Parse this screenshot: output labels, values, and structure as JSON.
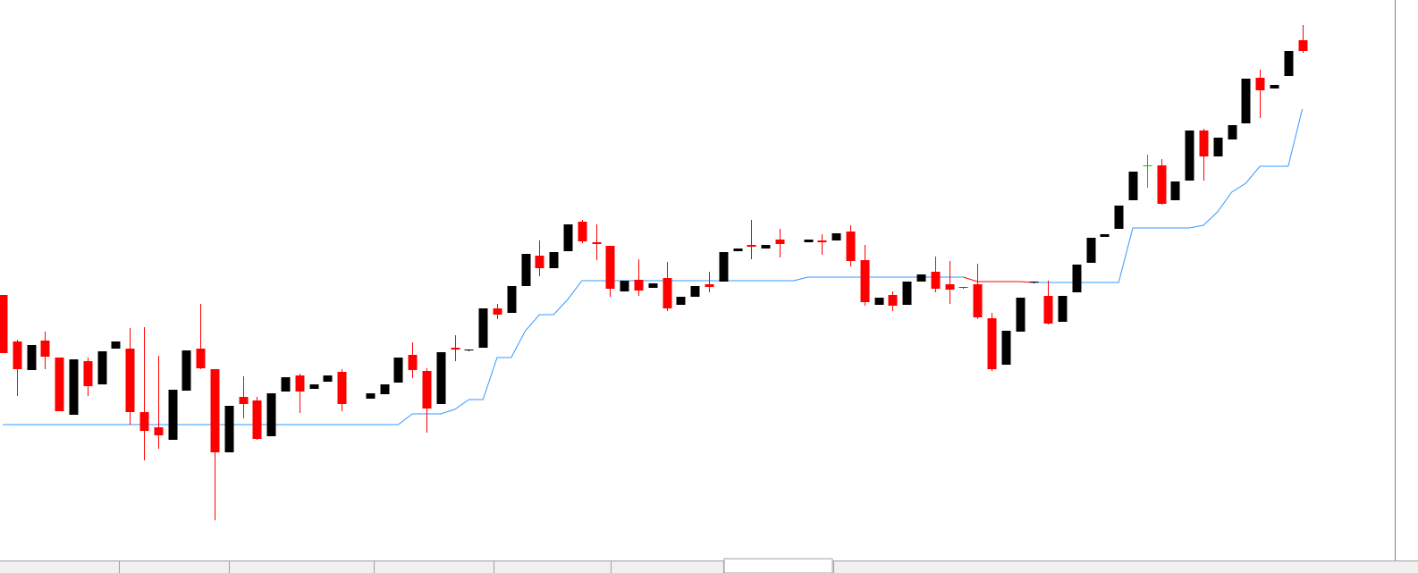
{
  "chart_data": {
    "type": "candlestick",
    "open": [
      311,
      259,
      227,
      260,
      241,
      177,
      237,
      211,
      251,
      251,
      180,
      163,
      149,
      204,
      251,
      228,
      135,
      197,
      193,
      153,
      203,
      221,
      206,
      214,
      225,
      null,
      195,
      200,
      213,
      244,
      226,
      189,
      252,
      249,
      252,
      296,
      291,
      321,
      355,
      341,
      360,
      393,
      370,
      366,
      315,
      328,
      319,
      330,
      300,
      309,
      323,
      326,
      360,
      367,
      363,
      373,
      null,
      370,
      372,
      372,
      382,
      350,
      300,
      311,
      300,
      326,
      337,
      323,
      320,
      323,
      285,
      233,
      270,
      325,
      310,
      281,
      314,
      347,
      376,
      385,
      417,
      456,
      456,
      417,
      439,
      495,
      466,
      485,
      503,
      554,
      542,
      556,
      596
    ],
    "high": [
      311,
      261,
      255,
      270,
      241,
      239,
      241,
      248,
      259,
      274,
      275,
      243,
      205,
      249,
      301,
      228,
      187,
      220,
      197,
      201,
      219,
      223,
      211,
      221,
      228,
      null,
      201,
      211,
      241,
      258,
      229,
      247,
      266,
      250,
      296,
      301,
      321,
      357,
      372,
      359,
      390,
      395,
      390,
      366,
      327,
      351,
      324,
      348,
      309,
      321,
      337,
      359,
      363,
      395,
      367,
      385,
      null,
      373,
      379,
      380,
      389,
      367,
      308,
      315,
      326,
      334,
      354,
      349,
      320,
      346,
      291,
      271,
      308,
      326,
      327,
      310,
      345,
      375,
      379,
      411,
      449,
      468,
      463,
      438,
      495,
      497,
      487,
      501,
      553,
      563,
      546,
      584,
      613
    ],
    "low": [
      246,
      198,
      227,
      228,
      181,
      177,
      198,
      211,
      251,
      166,
      126,
      139,
      149,
      204,
      228,
      59,
      135,
      173,
      149,
      153,
      203,
      179,
      206,
      214,
      181,
      null,
      195,
      200,
      213,
      218,
      157,
      189,
      237,
      248,
      252,
      284,
      291,
      321,
      332,
      341,
      360,
      369,
      350,
      309,
      315,
      310,
      319,
      293,
      300,
      309,
      314,
      326,
      360,
      351,
      363,
      353,
      null,
      370,
      356,
      372,
      343,
      299,
      300,
      293,
      300,
      326,
      314,
      301,
      318,
      284,
      226,
      233,
      270,
      324,
      278,
      281,
      314,
      347,
      376,
      385,
      417,
      431,
      412,
      417,
      439,
      439,
      466,
      485,
      503,
      509,
      542,
      556,
      582
    ],
    "close": [
      246,
      228,
      255,
      242,
      181,
      239,
      209,
      248,
      259,
      180,
      159,
      154,
      205,
      249,
      229,
      135,
      187,
      189,
      150,
      201,
      219,
      203,
      211,
      221,
      189,
      null,
      201,
      211,
      241,
      227,
      184,
      247,
      250,
      250,
      296,
      289,
      321,
      357,
      341,
      359,
      390,
      371,
      368,
      318,
      327,
      316,
      324,
      296,
      309,
      321,
      320,
      359,
      363,
      365,
      367,
      368,
      null,
      373,
      370,
      380,
      349,
      303,
      308,
      299,
      326,
      334,
      318,
      317,
      319,
      286,
      228,
      271,
      308,
      326,
      279,
      310,
      345,
      375,
      379,
      411,
      449,
      456,
      413,
      438,
      495,
      466,
      487,
      501,
      553,
      540,
      546,
      584,
      584
    ],
    "up_color": "#000000",
    "down_color": "#ff0000",
    "flat_color": "#00cc00",
    "ylim": [
      0,
      641
    ],
    "series": [
      {
        "color": "#3399ff",
        "values": [
          166,
          166,
          166,
          166,
          166,
          166,
          166,
          166,
          166,
          166,
          166,
          166,
          166,
          166,
          166,
          166,
          166,
          166,
          166,
          166,
          166,
          166,
          166,
          166,
          166,
          166,
          166,
          166,
          166,
          178,
          178,
          178,
          183,
          194,
          194,
          241,
          241,
          271,
          289,
          289,
          306,
          327,
          327,
          327,
          327,
          327,
          327,
          327,
          327,
          327,
          327,
          327,
          327,
          327,
          327,
          327,
          327,
          331,
          331,
          331,
          331,
          331,
          331,
          331,
          331,
          331,
          331,
          331,
          331,
          null,
          null,
          null,
          null,
          325,
          325,
          325,
          325,
          325,
          325,
          325,
          386,
          386,
          386,
          386,
          386,
          389,
          404,
          426,
          436,
          455,
          455,
          455,
          519
        ]
      },
      {
        "color": "#ff0000",
        "values": [
          null,
          null,
          null,
          null,
          null,
          null,
          null,
          null,
          null,
          null,
          null,
          null,
          null,
          null,
          null,
          null,
          null,
          null,
          null,
          null,
          null,
          null,
          null,
          null,
          null,
          null,
          null,
          null,
          null,
          null,
          null,
          null,
          null,
          null,
          null,
          null,
          null,
          null,
          null,
          null,
          null,
          null,
          null,
          null,
          null,
          null,
          null,
          null,
          null,
          null,
          null,
          null,
          null,
          null,
          null,
          null,
          null,
          null,
          null,
          null,
          null,
          null,
          null,
          null,
          null,
          null,
          null,
          null,
          331,
          326,
          326,
          326,
          326,
          325,
          null,
          null,
          null,
          null,
          null,
          null,
          null,
          null,
          null,
          null,
          null,
          null,
          null,
          null,
          null,
          null,
          null,
          null,
          null
        ]
      }
    ]
  }
}
